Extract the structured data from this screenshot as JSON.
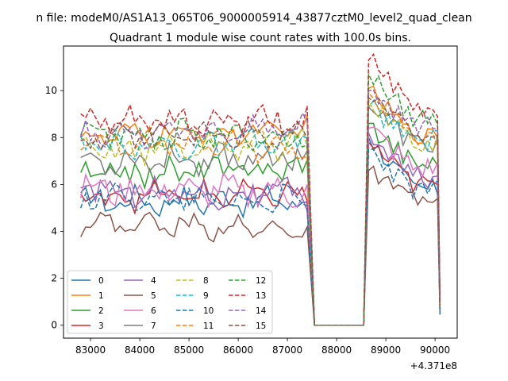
{
  "chart_data": {
    "type": "line",
    "suptitle": "n file: modeM0/AS1A13_065T06_9000005914_43877cztM0_level2_quad_clean",
    "title": "Quadrant 1 module wise count rates with 100.0s bins.",
    "xlabel": "",
    "ylabel": "",
    "x_offset_label": "+4.371e8",
    "xlim": [
      82450,
      90450
    ],
    "ylim": [
      -0.55,
      11.9
    ],
    "x_ticks": [
      83000,
      84000,
      85000,
      86000,
      87000,
      88000,
      89000,
      90000
    ],
    "x_tick_labels": [
      "83000",
      "84000",
      "85000",
      "86000",
      "87000",
      "88000",
      "89000",
      "90000"
    ],
    "y_ticks": [
      0,
      2,
      4,
      6,
      8,
      10
    ],
    "y_tick_labels": [
      "0",
      "2",
      "4",
      "6",
      "8",
      "10"
    ],
    "legend_position": "lower left",
    "x_start": 82800,
    "x_step": 100,
    "n_points": 74,
    "gap": {
      "drop_from": 87450,
      "zero_from": 87550,
      "zero_to": 88550,
      "rise_to": 88650
    },
    "last_x": 90100,
    "series": [
      {
        "name": "0",
        "color": "#1f77b4",
        "dash": false,
        "base": 5.3,
        "amp": 0.45,
        "tail": 5.8,
        "peak": 8.0,
        "end": 0.6
      },
      {
        "name": "1",
        "color": "#ff7f0e",
        "dash": false,
        "base": 8.0,
        "amp": 0.35,
        "tail": 8.1,
        "peak": 10.1,
        "end": 0.8
      },
      {
        "name": "2",
        "color": "#2ca02c",
        "dash": false,
        "base": 6.4,
        "amp": 0.5,
        "tail": 6.9,
        "peak": 8.6,
        "end": 0.7
      },
      {
        "name": "3",
        "color": "#d62728",
        "dash": false,
        "base": 5.5,
        "amp": 0.45,
        "tail": 6.0,
        "peak": 7.8,
        "end": 0.6
      },
      {
        "name": "4",
        "color": "#9467bd",
        "dash": false,
        "base": 5.8,
        "amp": 0.5,
        "tail": 6.3,
        "peak": 8.2,
        "end": 0.7
      },
      {
        "name": "5",
        "color": "#8c564b",
        "dash": false,
        "base": 4.4,
        "amp": 0.35,
        "tail": 5.3,
        "peak": 6.6,
        "end": 0.45
      },
      {
        "name": "6",
        "color": "#e377c2",
        "dash": false,
        "base": 5.8,
        "amp": 0.55,
        "tail": 6.7,
        "peak": 8.4,
        "end": 0.8
      },
      {
        "name": "7",
        "color": "#7f7f7f",
        "dash": false,
        "base": 7.0,
        "amp": 0.5,
        "tail": 7.7,
        "peak": 9.3,
        "end": 0.9
      },
      {
        "name": "8",
        "color": "#bcbd22",
        "dash": true,
        "base": 7.4,
        "amp": 0.45,
        "tail": 7.8,
        "peak": 9.6,
        "end": 0.8
      },
      {
        "name": "9",
        "color": "#17becf",
        "dash": true,
        "base": 7.6,
        "amp": 0.45,
        "tail": 7.9,
        "peak": 9.3,
        "end": 0.9
      },
      {
        "name": "10",
        "color": "#1f77b4",
        "dash": true,
        "base": 5.5,
        "amp": 0.45,
        "tail": 5.7,
        "peak": 7.5,
        "end": 0.5
      },
      {
        "name": "11",
        "color": "#ff7f0e",
        "dash": true,
        "base": 7.9,
        "amp": 0.4,
        "tail": 8.0,
        "peak": 9.9,
        "end": 0.8
      },
      {
        "name": "12",
        "color": "#2ca02c",
        "dash": true,
        "base": 8.2,
        "amp": 0.45,
        "tail": 8.9,
        "peak": 10.7,
        "end": 1.0
      },
      {
        "name": "13",
        "color": "#d62728",
        "dash": true,
        "base": 8.6,
        "amp": 0.5,
        "tail": 9.2,
        "peak": 11.3,
        "end": 1.0
      },
      {
        "name": "14",
        "color": "#9467bd",
        "dash": true,
        "base": 8.1,
        "amp": 0.4,
        "tail": 8.5,
        "peak": 10.0,
        "end": 0.9
      },
      {
        "name": "15",
        "color": "#8c564b",
        "dash": true,
        "base": 7.9,
        "amp": 0.4,
        "tail": 8.2,
        "peak": 9.7,
        "end": 0.85
      }
    ]
  }
}
